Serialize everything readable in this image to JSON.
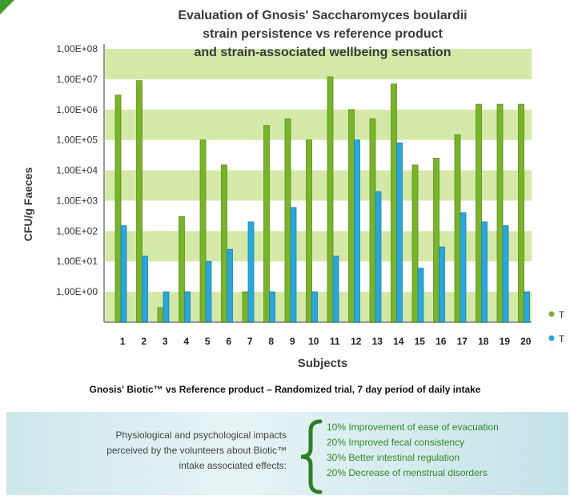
{
  "chart_data": {
    "type": "bar",
    "title_lines": [
      "Evaluation of Gnosis' Saccharomyces boulardii",
      "strain persistence vs reference product",
      "and strain-associated wellbeing sensation"
    ],
    "xlabel": "Subjects",
    "ylabel": "CFU/g  Faeces",
    "y_scale": "log",
    "ylim": [
      0.1,
      100000000.0
    ],
    "yticks": [
      "1,00E+08",
      "1,00E+07",
      "1,00E+06",
      "1,00E+05",
      "1,00E+04",
      "1,00E+03",
      "1,00E+02",
      "1,00E+01",
      "1,00E+00"
    ],
    "categories": [
      "1",
      "2",
      "3",
      "4",
      "5",
      "6",
      "7",
      "8",
      "9",
      "10",
      "11",
      "12",
      "13",
      "14",
      "15",
      "16",
      "17",
      "18",
      "19",
      "20"
    ],
    "legend_labels": [
      "T",
      "T"
    ],
    "series": [
      {
        "name": "T",
        "color": "#79b32a",
        "values": [
          3000000.0,
          9000000.0,
          0.3,
          300,
          100000.0,
          15000.0,
          1,
          300000.0,
          500000.0,
          100000.0,
          12000000.0,
          1000000.0,
          500000.0,
          7000000.0,
          15000.0,
          25000.0,
          150000.0,
          1500000.0,
          1500000.0,
          1500000.0
        ]
      },
      {
        "name": "T",
        "color": "#2aa7d8",
        "values": [
          150,
          15,
          1,
          1,
          10,
          25,
          200,
          1,
          600,
          1,
          15,
          100000.0,
          2000.0,
          80000.0,
          6,
          30,
          400,
          200,
          150,
          1
        ]
      }
    ],
    "grid": "horizontal bands",
    "legend_position": "right"
  },
  "subtitle": "Gnosis' Biotic™ vs Reference product – Randomized trial, 7 day period of daily intake",
  "panel": {
    "left_lines": [
      "Physiological and psychological impacts",
      "perceived by the volunteers about Biotic™",
      "intake associated effects:"
    ],
    "right_lines": [
      "10% Improvement of ease of evacuation",
      "20% Improved fecal consistency",
      "30% Better intestinal regulation",
      "20% Decrease of menstrual disorders"
    ]
  }
}
